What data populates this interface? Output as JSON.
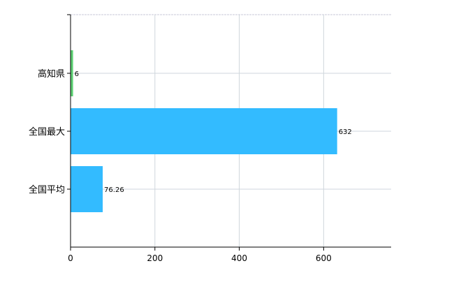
{
  "chart_data": {
    "type": "bar",
    "orientation": "horizontal",
    "categories": [
      "高知県",
      "全国最大",
      "全国平均"
    ],
    "values": [
      6,
      632,
      76.26
    ],
    "data_labels": [
      "6",
      "632",
      "76.26"
    ],
    "bar_colors": [
      "#5dd073",
      "#33bbff",
      "#33bbff"
    ],
    "xlim": [
      0,
      760
    ],
    "xticks": [
      0,
      200,
      400,
      600
    ],
    "xtick_labels": [
      "0",
      "200",
      "400",
      "600"
    ],
    "grid": true,
    "title": "",
    "xlabel": "",
    "ylabel": ""
  }
}
